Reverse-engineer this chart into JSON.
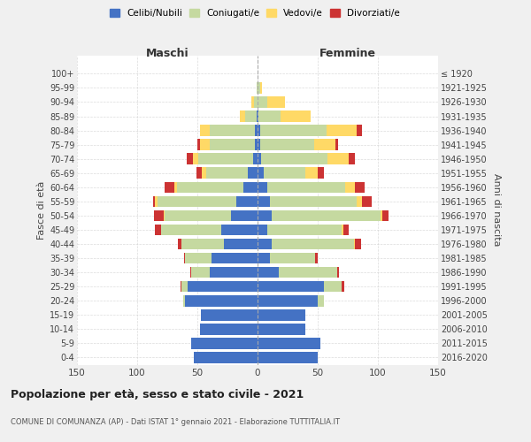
{
  "age_groups": [
    "0-4",
    "5-9",
    "10-14",
    "15-19",
    "20-24",
    "25-29",
    "30-34",
    "35-39",
    "40-44",
    "45-49",
    "50-54",
    "55-59",
    "60-64",
    "65-69",
    "70-74",
    "75-79",
    "80-84",
    "85-89",
    "90-94",
    "95-99",
    "100+"
  ],
  "birth_years": [
    "2016-2020",
    "2011-2015",
    "2006-2010",
    "2001-2005",
    "1996-2000",
    "1991-1995",
    "1986-1990",
    "1981-1985",
    "1976-1980",
    "1971-1975",
    "1966-1970",
    "1961-1965",
    "1956-1960",
    "1951-1955",
    "1946-1950",
    "1941-1945",
    "1936-1940",
    "1931-1935",
    "1926-1930",
    "1921-1925",
    "≤ 1920"
  ],
  "male": {
    "celibi": [
      53,
      55,
      48,
      47,
      60,
      58,
      40,
      38,
      28,
      30,
      22,
      18,
      12,
      8,
      4,
      2,
      2,
      1,
      0,
      0,
      0
    ],
    "coniugati": [
      0,
      0,
      0,
      0,
      2,
      5,
      15,
      22,
      35,
      50,
      55,
      65,
      55,
      35,
      45,
      38,
      38,
      9,
      3,
      1,
      0
    ],
    "vedovi": [
      0,
      0,
      0,
      0,
      0,
      0,
      0,
      0,
      0,
      0,
      1,
      2,
      2,
      3,
      5,
      8,
      8,
      5,
      2,
      0,
      0
    ],
    "divorziati": [
      0,
      0,
      0,
      0,
      0,
      1,
      1,
      1,
      3,
      5,
      8,
      2,
      8,
      5,
      5,
      2,
      0,
      0,
      0,
      0,
      0
    ]
  },
  "female": {
    "nubili": [
      50,
      52,
      40,
      40,
      50,
      55,
      18,
      10,
      12,
      8,
      12,
      10,
      8,
      5,
      3,
      2,
      2,
      1,
      0,
      0,
      0
    ],
    "coniugate": [
      0,
      0,
      0,
      0,
      5,
      15,
      48,
      38,
      68,
      62,
      90,
      72,
      65,
      35,
      55,
      45,
      55,
      18,
      8,
      2,
      0
    ],
    "vedove": [
      0,
      0,
      0,
      0,
      0,
      0,
      0,
      0,
      1,
      1,
      2,
      5,
      8,
      10,
      18,
      18,
      25,
      25,
      15,
      2,
      0
    ],
    "divorziate": [
      0,
      0,
      0,
      0,
      0,
      2,
      2,
      2,
      5,
      5,
      5,
      8,
      8,
      5,
      5,
      2,
      5,
      0,
      0,
      0,
      0
    ]
  },
  "colors": {
    "celibi": "#4472C4",
    "coniugati": "#C5D9A0",
    "vedovi": "#FFD966",
    "divorziati": "#CC3333"
  },
  "title": "Popolazione per età, sesso e stato civile - 2021",
  "subtitle": "COMUNE DI COMUNANZA (AP) - Dati ISTAT 1° gennaio 2021 - Elaborazione TUTTITALIA.IT",
  "xlabel_left": "Maschi",
  "xlabel_right": "Femmine",
  "ylabel_left": "Fasce di età",
  "ylabel_right": "Anni di nascita",
  "xlim": 150,
  "bg_color": "#f0f0f0",
  "plot_bg": "#ffffff",
  "grid_color": "#cccccc"
}
